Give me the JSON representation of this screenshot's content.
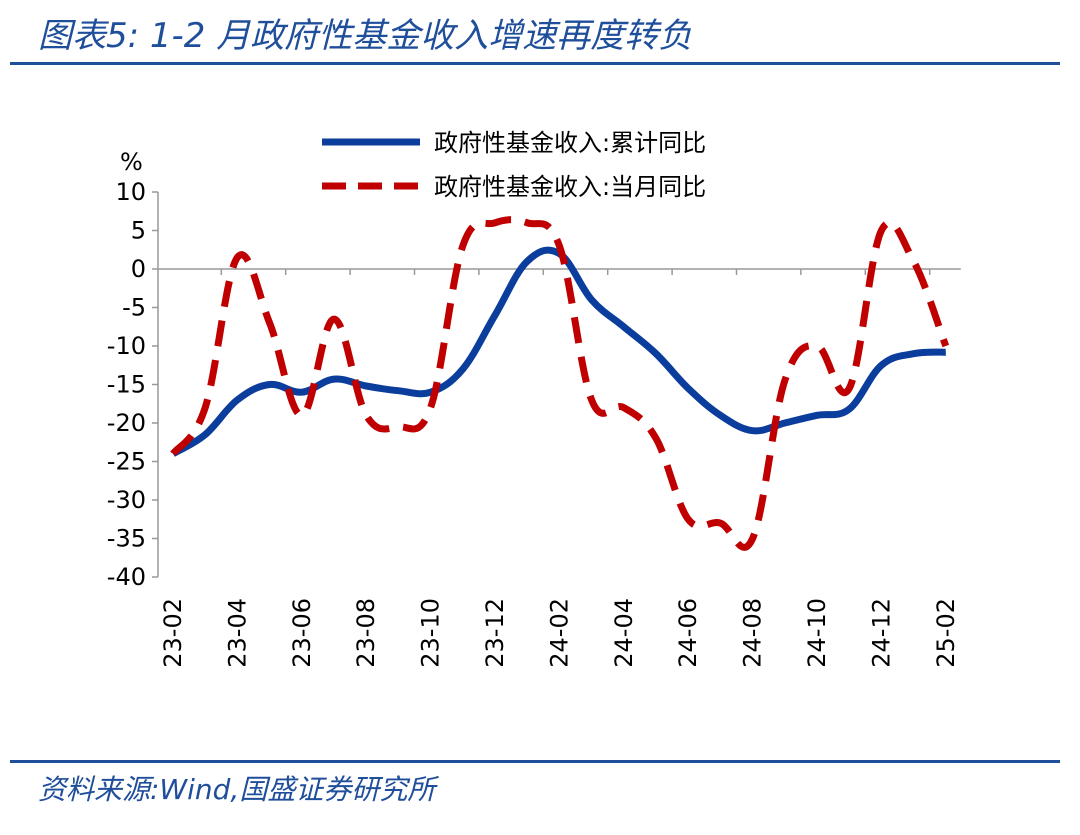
{
  "header": {
    "title": "图表5:  1-2 月政府性基金收入增速再度转负"
  },
  "footer": {
    "source": "资料来源:Wind,国盛证券研究所"
  },
  "colors": {
    "accent": "#1f4e9a",
    "series1": "#0a3d9c",
    "series2": "#c00000"
  },
  "chart_data": {
    "type": "line",
    "ylabel": "%",
    "ylim": [
      -40,
      10
    ],
    "yticks": [
      10,
      5,
      0,
      -5,
      -10,
      -15,
      -20,
      -25,
      -30,
      -35,
      -40
    ],
    "x": [
      "23-02",
      "23-03",
      "23-04",
      "23-05",
      "23-06",
      "23-07",
      "23-08",
      "23-09",
      "23-10",
      "23-11",
      "23-12",
      "24-01",
      "24-02",
      "24-03",
      "24-04",
      "24-05",
      "24-06",
      "24-07",
      "24-08",
      "24-09",
      "24-10",
      "24-11",
      "24-12",
      "25-01",
      "25-02"
    ],
    "xticklabels": [
      "23-02",
      "23-04",
      "23-06",
      "23-08",
      "23-10",
      "23-12",
      "24-02",
      "24-04",
      "24-06",
      "24-08",
      "24-10",
      "24-12",
      "25-02"
    ],
    "legend_position": "top-center",
    "series": [
      {
        "name": "政府性基金收入:累计同比",
        "style": "solid",
        "values": [
          -24,
          -21.5,
          -17,
          -15,
          -16,
          -14.3,
          -15.2,
          -15.8,
          -16,
          -13,
          -6,
          1,
          2,
          -4,
          -7.5,
          -11,
          -15.5,
          -19,
          -21,
          -20,
          -19,
          -18.2,
          -12.5,
          -11,
          -10.8
        ]
      },
      {
        "name": "政府性基金收入:当月同比",
        "style": "dashed",
        "values": [
          -24,
          -18,
          1.5,
          -7,
          -19,
          -6.5,
          -19,
          -20.5,
          -18,
          3,
          6,
          6,
          3,
          -17,
          -18,
          -22,
          -32.5,
          -33,
          -35,
          -14.5,
          -10,
          -15.5,
          5,
          1,
          -10
        ]
      }
    ]
  }
}
